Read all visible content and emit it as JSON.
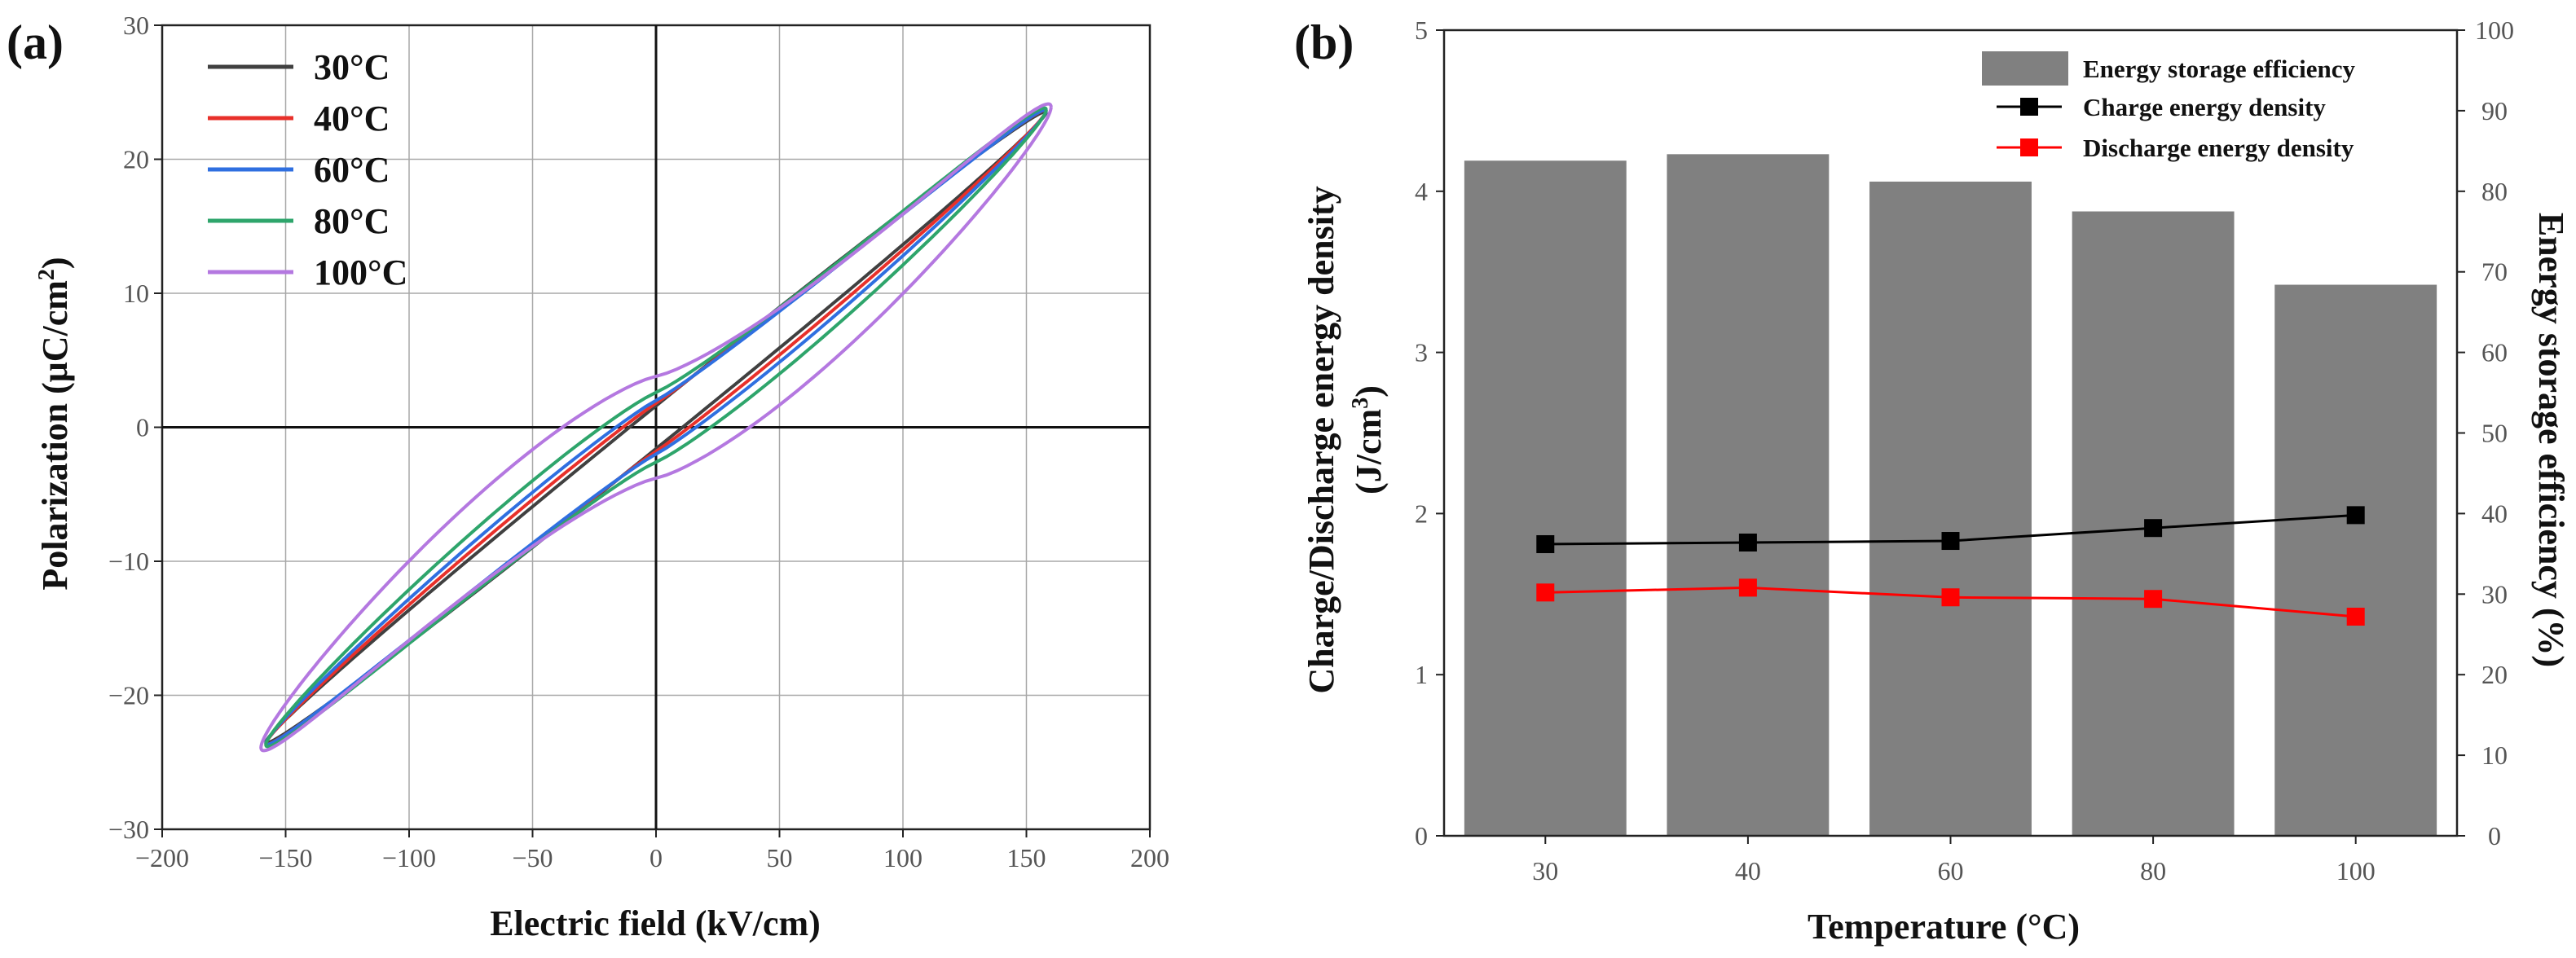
{
  "chart_data": [
    {
      "panel_label": "(a)",
      "type": "line",
      "title": "",
      "xlabel": "Electric field (kV/cm)",
      "ylabel": "Polarization (μC/cm",
      "ylabel_sup": "2",
      "ylabel_end": ")",
      "xlim": [
        -200,
        200
      ],
      "ylim": [
        -30,
        30
      ],
      "x_ticks": [
        -200,
        -150,
        -100,
        -50,
        0,
        50,
        100,
        150,
        200
      ],
      "y_ticks": [
        -30,
        -20,
        -10,
        0,
        10,
        20,
        30
      ],
      "x_tick_labels": [
        "−200",
        "−150",
        "−100",
        "−50",
        "0",
        "50",
        "100",
        "150",
        "200"
      ],
      "y_tick_labels": [
        "−30",
        "−20",
        "−10",
        "0",
        "10",
        "20",
        "30"
      ],
      "grid": true,
      "legend_position": "top-left",
      "series": [
        {
          "name": "30°C",
          "color": "#404040",
          "Emax": 158,
          "Pmax": 23.5,
          "Pr": 1.6,
          "shape": 1.0
        },
        {
          "name": "40°C",
          "color": "#e8302a",
          "Emax": 158,
          "Pmax": 23.6,
          "Pr": 1.8,
          "shape": 1.05
        },
        {
          "name": "60°C",
          "color": "#2f6fe0",
          "Emax": 158,
          "Pmax": 23.6,
          "Pr": 2.0,
          "shape": 1.1
        },
        {
          "name": "80°C",
          "color": "#2ea56b",
          "Emax": 158,
          "Pmax": 23.7,
          "Pr": 2.6,
          "shape": 1.15
        },
        {
          "name": "100°C",
          "color": "#b478e0",
          "Emax": 160,
          "Pmax": 23.9,
          "Pr": 3.8,
          "shape": 1.35
        }
      ]
    },
    {
      "panel_label": "(b)",
      "type": "bar+line",
      "title": "",
      "xlabel": "Temperature (°C)",
      "ylabel_left_line1": "Charge/Discharge energy density",
      "ylabel_left_line2": "(J/cm",
      "ylabel_left_sup": "3",
      "ylabel_left_end": ")",
      "ylabel_right": "Energy storage efficiency (%)",
      "categories": [
        "30",
        "40",
        "60",
        "80",
        "100"
      ],
      "ylim_left": [
        0,
        5
      ],
      "ylim_right": [
        0,
        100
      ],
      "y_ticks_left": [
        "0",
        "1",
        "2",
        "3",
        "4",
        "5"
      ],
      "y_ticks_right": [
        "0",
        "10",
        "20",
        "30",
        "40",
        "50",
        "60",
        "70",
        "80",
        "90",
        "100"
      ],
      "legend_position": "top-right",
      "bars": {
        "name": "Energy storage efficiency",
        "color": "#808080",
        "values": [
          83.8,
          84.6,
          81.2,
          77.5,
          68.4
        ]
      },
      "series": [
        {
          "name": "Charge energy density",
          "color": "#000000",
          "values": [
            1.81,
            1.82,
            1.83,
            1.91,
            1.99
          ]
        },
        {
          "name": "Discharge energy density",
          "color": "#ff0000",
          "values": [
            1.51,
            1.54,
            1.48,
            1.47,
            1.36
          ]
        }
      ]
    }
  ]
}
